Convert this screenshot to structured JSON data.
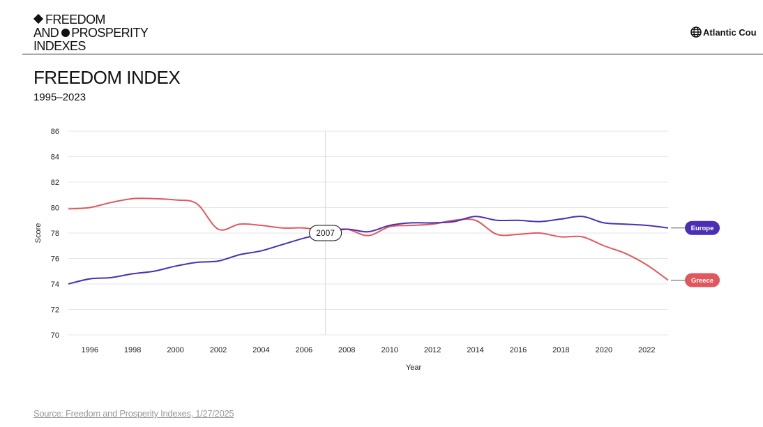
{
  "brand": {
    "line1": "FREEDOM",
    "line2a": "AND",
    "line2b": "PROSPERITY",
    "line3": "INDEXES"
  },
  "council": {
    "label": "Atlantic Cou"
  },
  "page": {
    "title": "FREEDOM INDEX",
    "subtitle": "1995–2023"
  },
  "source": {
    "text": "Source: Freedom and Prosperity Indexes, 1/27/2025"
  },
  "colors": {
    "europe": "#4a2fb5",
    "greece": "#e0585e",
    "grid": "#e6e6e6"
  },
  "chart_data": {
    "type": "line",
    "title": "FREEDOM INDEX",
    "subtitle": "1995–2023",
    "xlabel": "Year",
    "ylabel": "Score",
    "xlim": [
      1995,
      2023
    ],
    "ylim": [
      70,
      86
    ],
    "yticks": [
      70,
      72,
      74,
      76,
      78,
      80,
      82,
      84,
      86
    ],
    "xticks": [
      1996,
      1998,
      2000,
      2002,
      2004,
      2006,
      2008,
      2010,
      2012,
      2014,
      2016,
      2018,
      2020,
      2022
    ],
    "grid": true,
    "hover_year": "2007",
    "x": [
      1995,
      1996,
      1997,
      1998,
      1999,
      2000,
      2001,
      2002,
      2003,
      2004,
      2005,
      2006,
      2007,
      2008,
      2009,
      2010,
      2011,
      2012,
      2013,
      2014,
      2015,
      2016,
      2017,
      2018,
      2019,
      2020,
      2021,
      2022,
      2023
    ],
    "series": [
      {
        "name": "Europe",
        "color": "#4a2fb5",
        "values": [
          74.0,
          74.4,
          74.5,
          74.8,
          75.0,
          75.4,
          75.7,
          75.8,
          76.3,
          76.6,
          77.1,
          77.6,
          78.0,
          78.3,
          78.1,
          78.6,
          78.8,
          78.8,
          78.9,
          79.3,
          79.0,
          79.0,
          78.9,
          79.1,
          79.3,
          78.8,
          78.7,
          78.6,
          78.4
        ]
      },
      {
        "name": "Greece",
        "color": "#e0585e",
        "values": [
          79.9,
          80.0,
          80.4,
          80.7,
          80.7,
          80.6,
          80.3,
          78.3,
          78.7,
          78.6,
          78.4,
          78.4,
          78.2,
          78.3,
          77.8,
          78.5,
          78.6,
          78.7,
          79.0,
          79.0,
          77.9,
          77.9,
          78.0,
          77.7,
          77.7,
          77.0,
          76.4,
          75.5,
          74.3
        ]
      }
    ]
  }
}
